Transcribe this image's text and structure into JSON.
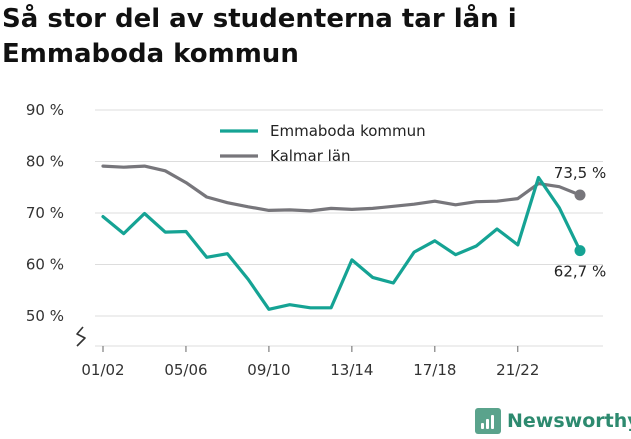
{
  "title": {
    "line1": "Så stor del av studenterna tar lån i",
    "line2": "Emmaboda kommun"
  },
  "brand": {
    "name": "Newsworthy"
  },
  "colors": {
    "emmaboda": "#15a394",
    "kalmar": "#77767b",
    "grid": "#dddddd",
    "axis": "#666666"
  },
  "chart_data": {
    "type": "line",
    "title": "Så stor del av studenterna tar lån i Emmaboda kommun",
    "xlabel": "",
    "ylabel": "",
    "ylim": [
      50,
      90
    ],
    "y_ticks": [
      50,
      60,
      70,
      80,
      90
    ],
    "y_tick_labels": [
      "50 %",
      "60 %",
      "70 %",
      "80 %",
      "90 %"
    ],
    "y_axis_break": true,
    "grid": true,
    "legend_position": "top-center",
    "x": [
      "01/02",
      "02/03",
      "03/04",
      "04/05",
      "05/06",
      "06/07",
      "07/08",
      "08/09",
      "09/10",
      "10/11",
      "11/12",
      "12/13",
      "13/14",
      "14/15",
      "15/16",
      "16/17",
      "17/18",
      "18/19",
      "19/20",
      "20/21",
      "21/22",
      "22/23",
      "23/24",
      "24/25"
    ],
    "x_tick_labels": [
      "01/02",
      "05/06",
      "09/10",
      "13/14",
      "17/18",
      "21/22"
    ],
    "series": [
      {
        "name": "Emmaboda kommun",
        "color": "#15a394",
        "values": [
          69.3,
          66.0,
          69.9,
          66.3,
          66.4,
          61.4,
          62.1,
          57.1,
          51.3,
          52.2,
          51.6,
          51.6,
          60.9,
          57.5,
          56.4,
          62.4,
          64.6,
          61.9,
          63.6,
          66.9,
          63.8,
          76.9,
          71.0,
          62.7
        ],
        "end_label": "62,7 %"
      },
      {
        "name": "Kalmar län",
        "color": "#77767b",
        "values": [
          79.1,
          78.9,
          79.1,
          78.2,
          75.9,
          73.1,
          72.0,
          71.2,
          70.5,
          70.6,
          70.4,
          70.9,
          70.7,
          70.9,
          71.3,
          71.7,
          72.3,
          71.6,
          72.2,
          72.3,
          72.8,
          75.7,
          75.1,
          73.5
        ],
        "end_label": "73,5 %"
      }
    ]
  }
}
